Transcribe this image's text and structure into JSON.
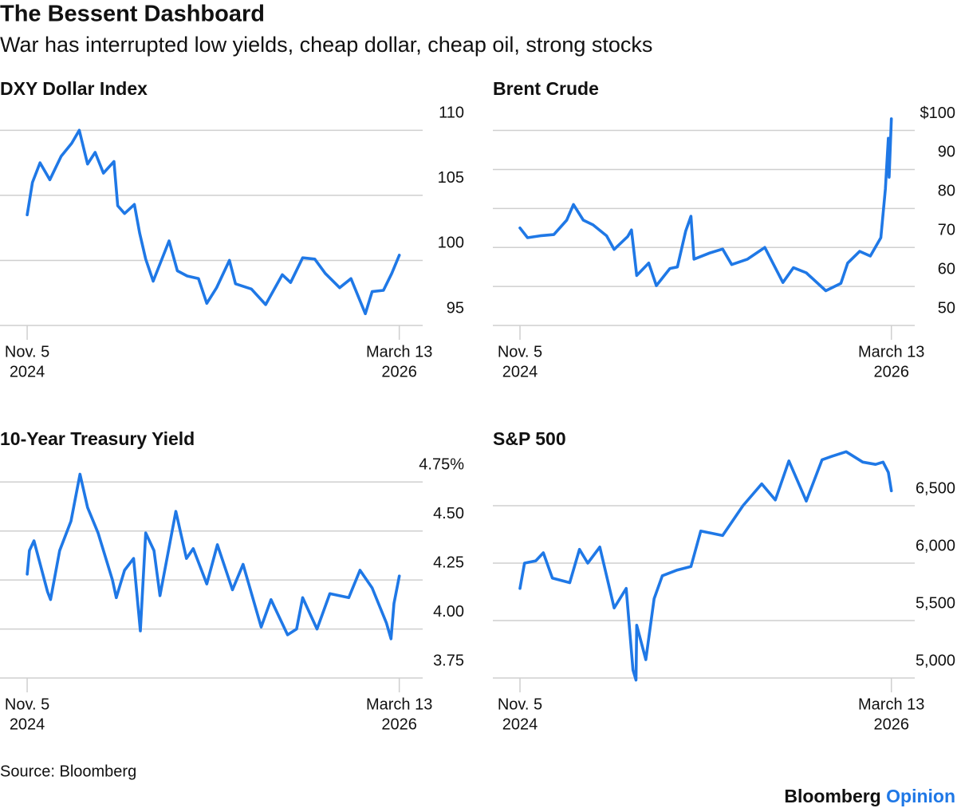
{
  "title": "The Bessent Dashboard",
  "subtitle": "War has interrupted low yields, cheap dollar, cheap oil, strong stocks",
  "source": "Source: Bloomberg",
  "logo": [
    "Bloomberg",
    "Opinion"
  ],
  "chart_data": [
    {
      "type": "line",
      "title": "DXY Dollar Index",
      "color": "#1f78e6",
      "grid": true,
      "xlim": [
        "2024-09-30",
        "2026-04-13"
      ],
      "xticks": [
        {
          "value": "2024-11-05",
          "label": [
            "Nov. 5",
            "2024"
          ]
        },
        {
          "value": "2026-03-13",
          "label": [
            "March 13",
            "2026"
          ]
        }
      ],
      "ylim": [
        95,
        111
      ],
      "yticks": [
        95,
        100,
        105,
        110
      ],
      "x": [
        "2024-11-05",
        "2024-11-12",
        "2024-11-22",
        "2024-12-05",
        "2024-12-20",
        "2025-01-03",
        "2025-01-13",
        "2025-01-24",
        "2025-02-03",
        "2025-02-14",
        "2025-02-28",
        "2025-03-05",
        "2025-03-14",
        "2025-03-27",
        "2025-04-03",
        "2025-04-11",
        "2025-04-21",
        "2025-05-12",
        "2025-05-23",
        "2025-06-05",
        "2025-06-20",
        "2025-07-01",
        "2025-07-14",
        "2025-07-31",
        "2025-08-08",
        "2025-08-29",
        "2025-09-17",
        "2025-10-09",
        "2025-10-20",
        "2025-11-05",
        "2025-11-21",
        "2025-12-05",
        "2025-12-24",
        "2026-01-08",
        "2026-01-27",
        "2026-02-05",
        "2026-02-20",
        "2026-03-03",
        "2026-03-13"
      ],
      "values": [
        103.5,
        106.0,
        107.5,
        106.2,
        108.0,
        109.0,
        110.0,
        107.4,
        108.3,
        106.7,
        107.6,
        104.2,
        103.6,
        104.3,
        102.1,
        100.1,
        98.4,
        101.5,
        99.2,
        98.8,
        98.6,
        96.7,
        97.9,
        100.0,
        98.2,
        97.8,
        96.6,
        98.9,
        98.3,
        100.2,
        100.1,
        99.0,
        97.9,
        98.6,
        95.9,
        97.6,
        97.7,
        99.0,
        100.4
      ]
    },
    {
      "type": "line",
      "title": "Brent Crude",
      "color": "#1f78e6",
      "grid": true,
      "xlim": [
        "2024-09-30",
        "2026-04-13"
      ],
      "xticks": [
        {
          "value": "2024-11-05",
          "label": [
            "Nov. 5",
            "2024"
          ]
        },
        {
          "value": "2026-03-13",
          "label": [
            "March 13",
            "2026"
          ]
        }
      ],
      "ylim": [
        50,
        104
      ],
      "yticks": [
        50,
        60,
        70,
        80,
        90,
        {
          "value": 100,
          "label": "$100"
        }
      ],
      "x": [
        "2024-11-05",
        "2024-11-15",
        "2024-12-02",
        "2024-12-20",
        "2025-01-06",
        "2025-01-15",
        "2025-01-28",
        "2025-02-10",
        "2025-02-28",
        "2025-03-10",
        "2025-03-28",
        "2025-04-02",
        "2025-04-09",
        "2025-04-25",
        "2025-05-05",
        "2025-05-23",
        "2025-06-02",
        "2025-06-13",
        "2025-06-20",
        "2025-06-24",
        "2025-07-15",
        "2025-08-01",
        "2025-08-13",
        "2025-09-03",
        "2025-09-26",
        "2025-10-20",
        "2025-11-03",
        "2025-11-20",
        "2025-12-16",
        "2026-01-05",
        "2026-01-14",
        "2026-01-30",
        "2026-02-13",
        "2026-02-27",
        "2026-03-05",
        "2026-03-09",
        "2026-03-10",
        "2026-03-13"
      ],
      "values": [
        75.0,
        72.5,
        73.0,
        73.3,
        77.0,
        81.0,
        77.0,
        75.8,
        73.0,
        69.5,
        72.8,
        74.5,
        62.8,
        66.0,
        60.2,
        64.6,
        65.0,
        74.2,
        78.0,
        67.0,
        68.6,
        69.6,
        65.6,
        67.0,
        70.0,
        61.0,
        64.8,
        63.5,
        58.9,
        60.8,
        66.0,
        69.0,
        67.8,
        72.5,
        85.0,
        98.0,
        88.0,
        103.0
      ]
    },
    {
      "type": "line",
      "title": "10-Year Treasury Yield",
      "color": "#1f78e6",
      "grid": true,
      "xlim": [
        "2024-09-30",
        "2026-04-13"
      ],
      "xticks": [
        {
          "value": "2024-11-05",
          "label": [
            "Nov. 5",
            "2024"
          ]
        },
        {
          "value": "2026-03-13",
          "label": [
            "March 13",
            "2026"
          ]
        }
      ],
      "ylim": [
        3.75,
        4.8
      ],
      "yticks": [
        3.75,
        {
          "value": 4,
          "label": "4.00"
        },
        4.25,
        {
          "value": 4.5,
          "label": "4.50"
        },
        {
          "value": 4.75,
          "label": "4.75%"
        }
      ],
      "x": [
        "2024-11-05",
        "2024-11-08",
        "2024-11-14",
        "2024-12-02",
        "2024-12-06",
        "2024-12-18",
        "2025-01-02",
        "2025-01-14",
        "2025-01-24",
        "2025-02-07",
        "2025-02-26",
        "2025-03-03",
        "2025-03-14",
        "2025-03-26",
        "2025-04-04",
        "2025-04-11",
        "2025-04-22",
        "2025-04-30",
        "2025-05-21",
        "2025-06-04",
        "2025-06-13",
        "2025-07-01",
        "2025-07-15",
        "2025-08-04",
        "2025-08-18",
        "2025-09-11",
        "2025-09-24",
        "2025-10-16",
        "2025-10-28",
        "2025-11-05",
        "2025-11-24",
        "2025-12-11",
        "2026-01-05",
        "2026-01-20",
        "2026-02-05",
        "2026-02-24",
        "2026-03-02",
        "2026-03-06",
        "2026-03-13"
      ],
      "values": [
        4.28,
        4.4,
        4.45,
        4.19,
        4.15,
        4.4,
        4.55,
        4.79,
        4.62,
        4.49,
        4.25,
        4.16,
        4.3,
        4.36,
        3.99,
        4.49,
        4.4,
        4.17,
        4.6,
        4.36,
        4.41,
        4.23,
        4.43,
        4.2,
        4.33,
        4.01,
        4.15,
        3.97,
        4.0,
        4.16,
        4.0,
        4.18,
        4.16,
        4.3,
        4.21,
        4.03,
        3.95,
        4.13,
        4.27
      ]
    },
    {
      "type": "line",
      "title": "S&P 500",
      "color": "#1f78e6",
      "grid": true,
      "xlim": [
        "2024-09-30",
        "2026-04-13"
      ],
      "xticks": [
        {
          "value": "2024-11-05",
          "label": [
            "Nov. 5",
            "2024"
          ]
        },
        {
          "value": "2026-03-13",
          "label": [
            "March 13",
            "2026"
          ]
        }
      ],
      "ylim": [
        5000,
        7000
      ],
      "yticks": [
        {
          "value": 5000,
          "label": "5,000"
        },
        {
          "value": 5500,
          "label": "5,500"
        },
        {
          "value": 6000,
          "label": "6,000"
        },
        {
          "value": 6500,
          "label": "6,500"
        }
      ],
      "x": [
        "2024-11-05",
        "2024-11-11",
        "2024-11-26",
        "2024-12-06",
        "2024-12-18",
        "2025-01-10",
        "2025-01-23",
        "2025-02-03",
        "2025-02-19",
        "2025-03-10",
        "2025-03-26",
        "2025-04-04",
        "2025-04-08",
        "2025-04-09",
        "2025-04-21",
        "2025-05-02",
        "2025-05-13",
        "2025-06-02",
        "2025-06-20",
        "2025-07-03",
        "2025-08-01",
        "2025-08-28",
        "2025-09-22",
        "2025-10-10",
        "2025-10-28",
        "2025-11-20",
        "2025-12-11",
        "2025-12-24",
        "2026-01-12",
        "2026-02-03",
        "2026-02-20",
        "2026-03-02",
        "2026-03-09",
        "2026-03-13"
      ],
      "values": [
        5780,
        6000,
        6020,
        6090,
        5870,
        5830,
        6120,
        6000,
        6140,
        5610,
        5780,
        5070,
        4982,
        5460,
        5160,
        5690,
        5890,
        5940,
        5970,
        6280,
        6240,
        6500,
        6690,
        6550,
        6890,
        6540,
        6900,
        6930,
        6970,
        6880,
        6860,
        6880,
        6790,
        6630
      ]
    }
  ]
}
